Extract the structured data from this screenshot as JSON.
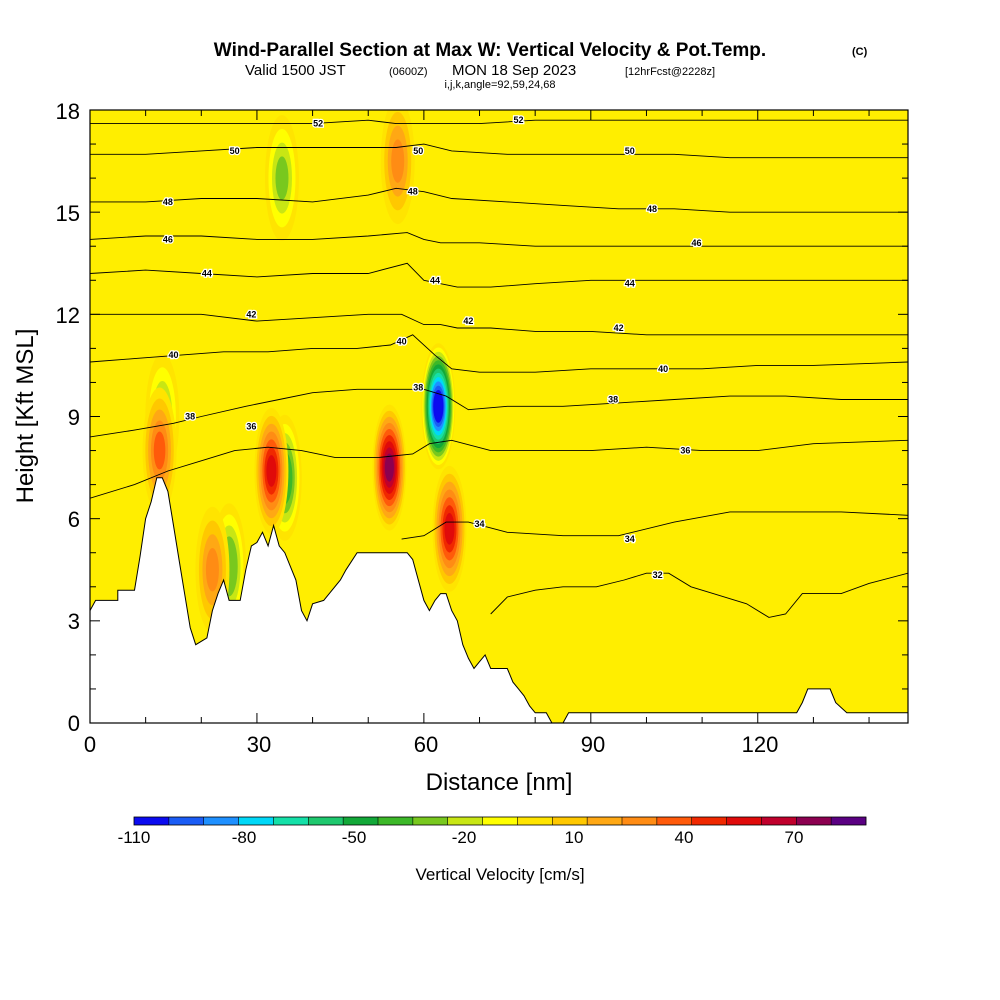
{
  "header": {
    "title": "Wind-Parallel Section at Max W: Vertical Velocity & Pot.Temp.",
    "copyright": "(C)",
    "valid_prefix": "Valid 1500 JST",
    "valid_utc": "(0600Z)",
    "valid_date": "MON 18 Sep 2023",
    "forecast": "[12hrFcst@2228z]",
    "indices": "i,j,k,angle=92,59,24,68"
  },
  "chart_data": {
    "type": "heatmap",
    "xlabel": "Distance [nm]",
    "ylabel": "Height [Kft MSL]",
    "xlim": [
      0,
      147
    ],
    "ylim": [
      0,
      18
    ],
    "x_ticks": [
      "0",
      "30",
      "60",
      "90",
      "120"
    ],
    "y_ticks": [
      "0",
      "3",
      "6",
      "9",
      "12",
      "15",
      "18"
    ],
    "background_value_cm_s": 5,
    "colorbar": {
      "title": "Vertical Velocity [cm/s]",
      "tick_labels": [
        "-110",
        "-80",
        "-50",
        "-20",
        "10",
        "40",
        "70"
      ],
      "levels": [
        -110,
        -100,
        -90,
        -80,
        -70,
        -60,
        -50,
        -40,
        -30,
        -20,
        -10,
        0,
        10,
        20,
        30,
        40,
        50,
        60,
        70,
        80,
        90
      ],
      "colors": [
        "#0b0bf0",
        "#1a5cf5",
        "#1e90ff",
        "#00d8f8",
        "#14e0a8",
        "#1ec86e",
        "#12a838",
        "#3cb828",
        "#78c81e",
        "#c8e614",
        "#ffff00",
        "#ffe400",
        "#ffc800",
        "#ffa814",
        "#ff8c14",
        "#ff5a0a",
        "#f02800",
        "#e00a0a",
        "#c0002c",
        "#8c0050",
        "#5a0082"
      ]
    },
    "terrain_kft": [
      [
        0,
        3.3
      ],
      [
        1,
        3.6
      ],
      [
        5,
        3.6
      ],
      [
        5,
        3.9
      ],
      [
        8,
        3.9
      ],
      [
        9,
        4.9
      ],
      [
        10,
        6.0
      ],
      [
        11,
        6.5
      ],
      [
        12,
        7.2
      ],
      [
        13,
        7.2
      ],
      [
        14,
        6.8
      ],
      [
        15,
        5.8
      ],
      [
        16,
        4.8
      ],
      [
        17,
        3.8
      ],
      [
        18,
        2.8
      ],
      [
        19,
        2.3
      ],
      [
        21,
        2.5
      ],
      [
        22,
        3.3
      ],
      [
        23,
        3.8
      ],
      [
        24,
        4.2
      ],
      [
        25,
        3.6
      ],
      [
        27,
        3.6
      ],
      [
        28,
        4.5
      ],
      [
        29,
        5.2
      ],
      [
        30,
        5.3
      ],
      [
        31,
        5.6
      ],
      [
        32,
        5.2
      ],
      [
        33,
        5.8
      ],
      [
        34,
        5.2
      ],
      [
        35,
        5.0
      ],
      [
        36,
        4.6
      ],
      [
        37,
        4.2
      ],
      [
        38,
        3.3
      ],
      [
        39,
        3.0
      ],
      [
        40,
        3.5
      ],
      [
        42,
        3.6
      ],
      [
        43,
        3.8
      ],
      [
        45,
        4.2
      ],
      [
        46,
        4.5
      ],
      [
        48,
        5.0
      ],
      [
        57,
        5.0
      ],
      [
        58,
        4.8
      ],
      [
        59,
        4.2
      ],
      [
        60,
        3.6
      ],
      [
        61,
        3.3
      ],
      [
        62,
        3.6
      ],
      [
        63,
        3.8
      ],
      [
        64,
        3.8
      ],
      [
        65,
        3.3
      ],
      [
        66,
        3.0
      ],
      [
        67,
        2.3
      ],
      [
        68,
        1.9
      ],
      [
        69,
        1.6
      ],
      [
        70,
        1.8
      ],
      [
        71,
        2.0
      ],
      [
        72,
        1.6
      ],
      [
        75,
        1.6
      ],
      [
        76,
        1.2
      ],
      [
        77,
        1.0
      ],
      [
        78,
        0.8
      ],
      [
        79,
        0.5
      ],
      [
        80,
        0.3
      ],
      [
        82,
        0.3
      ],
      [
        83,
        0.0
      ],
      [
        85,
        0.0
      ],
      [
        86,
        0.3
      ],
      [
        127,
        0.3
      ],
      [
        128,
        0.6
      ],
      [
        129,
        1.0
      ],
      [
        133,
        1.0
      ],
      [
        134,
        0.6
      ],
      [
        136,
        0.3
      ],
      [
        140,
        0.3
      ],
      [
        141,
        0.3
      ],
      [
        147,
        0.3
      ]
    ],
    "updraft_cores": [
      {
        "x": 53.8,
        "y": 7.5,
        "peak_cm_s": 80
      },
      {
        "x": 32.6,
        "y": 7.4,
        "peak_cm_s": 60
      },
      {
        "x": 64.6,
        "y": 5.7,
        "peak_cm_s": 60
      },
      {
        "x": 12.5,
        "y": 8.0,
        "peak_cm_s": 40
      },
      {
        "x": 55.3,
        "y": 16.5,
        "peak_cm_s": 30
      },
      {
        "x": 22.0,
        "y": 4.5,
        "peak_cm_s": 30
      }
    ],
    "downdraft_cores": [
      {
        "x": 62.6,
        "y": 9.3,
        "peak_cm_s": -110
      },
      {
        "x": 35.0,
        "y": 7.2,
        "peak_cm_s": -40
      },
      {
        "x": 25.0,
        "y": 4.6,
        "peak_cm_s": -30
      },
      {
        "x": 13.0,
        "y": 9.0,
        "peak_cm_s": -20
      },
      {
        "x": 34.5,
        "y": 16.0,
        "peak_cm_s": -25
      }
    ],
    "theta_contours": [
      {
        "label": "32",
        "points": [
          [
            72,
            3.2
          ],
          [
            75,
            3.7
          ],
          [
            80,
            3.9
          ],
          [
            85,
            4.0
          ],
          [
            91,
            4.0
          ],
          [
            96,
            4.2
          ],
          [
            100,
            4.4
          ],
          [
            104,
            4.4
          ],
          [
            108,
            4.0
          ],
          [
            112,
            3.8
          ],
          [
            118,
            3.5
          ],
          [
            122,
            3.1
          ],
          [
            125,
            3.2
          ],
          [
            128,
            3.8
          ],
          [
            133,
            3.8
          ],
          [
            135,
            3.8
          ],
          [
            140,
            4.1
          ],
          [
            147,
            4.4
          ]
        ],
        "labels_at": [
          [
            102,
            4.35
          ]
        ]
      },
      {
        "label": "34",
        "points": [
          [
            56,
            5.4
          ],
          [
            60,
            5.5
          ],
          [
            64,
            5.9
          ],
          [
            68,
            5.9
          ],
          [
            75,
            5.6
          ],
          [
            85,
            5.5
          ],
          [
            95,
            5.5
          ],
          [
            105,
            5.9
          ],
          [
            115,
            6.2
          ],
          [
            125,
            6.2
          ],
          [
            135,
            6.2
          ],
          [
            147,
            6.1
          ]
        ],
        "labels_at": [
          [
            70,
            5.85
          ],
          [
            97,
            5.4
          ]
        ]
      },
      {
        "label": "36",
        "points": [
          [
            0,
            6.6
          ],
          [
            8,
            7.0
          ],
          [
            14,
            7.4
          ],
          [
            20,
            7.7
          ],
          [
            26,
            8.0
          ],
          [
            32,
            8.1
          ],
          [
            38,
            8.0
          ],
          [
            44,
            7.8
          ],
          [
            52,
            7.8
          ],
          [
            58,
            7.9
          ],
          [
            61,
            8.2
          ],
          [
            65,
            8.3
          ],
          [
            72,
            8.0
          ],
          [
            80,
            8.0
          ],
          [
            90,
            8.0
          ],
          [
            100,
            8.1
          ],
          [
            110,
            8.0
          ],
          [
            120,
            8.0
          ],
          [
            130,
            8.2
          ],
          [
            147,
            8.3
          ]
        ],
        "labels_at": [
          [
            29,
            8.7
          ],
          [
            107,
            8.0
          ]
        ]
      },
      {
        "label": "38",
        "points": [
          [
            0,
            8.4
          ],
          [
            8,
            8.6
          ],
          [
            15,
            8.8
          ],
          [
            20,
            9.0
          ],
          [
            28,
            9.3
          ],
          [
            34,
            9.5
          ],
          [
            40,
            9.7
          ],
          [
            48,
            9.8
          ],
          [
            55,
            9.8
          ],
          [
            60,
            9.8
          ],
          [
            64,
            9.6
          ],
          [
            68,
            9.2
          ],
          [
            75,
            9.3
          ],
          [
            85,
            9.3
          ],
          [
            95,
            9.4
          ],
          [
            105,
            9.5
          ],
          [
            115,
            9.6
          ],
          [
            125,
            9.6
          ],
          [
            135,
            9.5
          ],
          [
            147,
            9.5
          ]
        ],
        "labels_at": [
          [
            18,
            9.0
          ],
          [
            59,
            9.85
          ],
          [
            94,
            9.5
          ]
        ]
      },
      {
        "label": "40",
        "points": [
          [
            0,
            10.6
          ],
          [
            8,
            10.7
          ],
          [
            16,
            10.8
          ],
          [
            24,
            10.9
          ],
          [
            32,
            10.9
          ],
          [
            40,
            11.0
          ],
          [
            48,
            11.0
          ],
          [
            54,
            11.1
          ],
          [
            58,
            11.4
          ],
          [
            62,
            10.8
          ],
          [
            65,
            10.4
          ],
          [
            70,
            10.3
          ],
          [
            80,
            10.3
          ],
          [
            90,
            10.4
          ],
          [
            100,
            10.4
          ],
          [
            110,
            10.4
          ],
          [
            120,
            10.5
          ],
          [
            130,
            10.5
          ],
          [
            147,
            10.6
          ]
        ],
        "labels_at": [
          [
            15,
            10.8
          ],
          [
            56,
            11.2
          ],
          [
            103,
            10.4
          ]
        ]
      },
      {
        "label": "42",
        "points": [
          [
            0,
            12.0
          ],
          [
            10,
            12.0
          ],
          [
            20,
            12.0
          ],
          [
            30,
            11.8
          ],
          [
            40,
            11.9
          ],
          [
            50,
            12.0
          ],
          [
            56,
            12.0
          ],
          [
            60,
            11.7
          ],
          [
            63,
            11.7
          ],
          [
            66,
            11.6
          ],
          [
            72,
            11.6
          ],
          [
            80,
            11.5
          ],
          [
            90,
            11.5
          ],
          [
            100,
            11.4
          ],
          [
            110,
            11.4
          ],
          [
            120,
            11.4
          ],
          [
            130,
            11.4
          ],
          [
            147,
            11.4
          ]
        ],
        "labels_at": [
          [
            29,
            12.0
          ],
          [
            68,
            11.8
          ],
          [
            95,
            11.6
          ]
        ]
      },
      {
        "label": "44",
        "points": [
          [
            0,
            13.2
          ],
          [
            10,
            13.3
          ],
          [
            20,
            13.2
          ],
          [
            30,
            13.1
          ],
          [
            40,
            13.2
          ],
          [
            50,
            13.2
          ],
          [
            57,
            13.5
          ],
          [
            60,
            13.0
          ],
          [
            63,
            12.9
          ],
          [
            66,
            12.8
          ],
          [
            72,
            12.8
          ],
          [
            80,
            12.9
          ],
          [
            90,
            13.0
          ],
          [
            100,
            13.0
          ],
          [
            110,
            13.0
          ],
          [
            120,
            13.0
          ],
          [
            130,
            13.0
          ],
          [
            147,
            13.0
          ]
        ],
        "labels_at": [
          [
            21,
            13.2
          ],
          [
            62,
            13.0
          ],
          [
            97,
            12.9
          ]
        ]
      },
      {
        "label": "46",
        "points": [
          [
            0,
            14.2
          ],
          [
            10,
            14.3
          ],
          [
            20,
            14.3
          ],
          [
            30,
            14.2
          ],
          [
            40,
            14.2
          ],
          [
            50,
            14.3
          ],
          [
            57,
            14.4
          ],
          [
            60,
            14.2
          ],
          [
            63,
            14.1
          ],
          [
            70,
            14.1
          ],
          [
            80,
            14.0
          ],
          [
            90,
            14.0
          ],
          [
            100,
            14.0
          ],
          [
            110,
            14.0
          ],
          [
            120,
            14.0
          ],
          [
            130,
            14.0
          ],
          [
            147,
            14.0
          ]
        ],
        "labels_at": [
          [
            14,
            14.2
          ],
          [
            109,
            14.1
          ]
        ]
      },
      {
        "label": "48",
        "points": [
          [
            0,
            15.3
          ],
          [
            10,
            15.3
          ],
          [
            20,
            15.4
          ],
          [
            30,
            15.4
          ],
          [
            40,
            15.3
          ],
          [
            50,
            15.5
          ],
          [
            55,
            15.7
          ],
          [
            60,
            15.6
          ],
          [
            65,
            15.4
          ],
          [
            75,
            15.3
          ],
          [
            85,
            15.2
          ],
          [
            95,
            15.1
          ],
          [
            105,
            15.1
          ],
          [
            115,
            15.0
          ],
          [
            125,
            15.0
          ],
          [
            135,
            15.0
          ],
          [
            147,
            15.0
          ]
        ],
        "labels_at": [
          [
            14,
            15.3
          ],
          [
            58,
            15.6
          ],
          [
            101,
            15.1
          ]
        ]
      },
      {
        "label": "50",
        "points": [
          [
            0,
            16.7
          ],
          [
            10,
            16.7
          ],
          [
            20,
            16.8
          ],
          [
            30,
            16.9
          ],
          [
            40,
            16.9
          ],
          [
            50,
            16.9
          ],
          [
            55,
            16.9
          ],
          [
            60,
            17.0
          ],
          [
            65,
            16.8
          ],
          [
            75,
            16.7
          ],
          [
            85,
            16.7
          ],
          [
            95,
            16.7
          ],
          [
            105,
            16.7
          ],
          [
            115,
            16.6
          ],
          [
            125,
            16.6
          ],
          [
            135,
            16.6
          ],
          [
            147,
            16.6
          ]
        ],
        "labels_at": [
          [
            26,
            16.8
          ],
          [
            59,
            16.8
          ],
          [
            97,
            16.8
          ]
        ]
      },
      {
        "label": "52",
        "points": [
          [
            0,
            17.6
          ],
          [
            10,
            17.6
          ],
          [
            20,
            17.6
          ],
          [
            30,
            17.6
          ],
          [
            40,
            17.6
          ],
          [
            50,
            17.7
          ],
          [
            55,
            17.6
          ],
          [
            62,
            17.6
          ],
          [
            70,
            17.6
          ],
          [
            80,
            17.7
          ],
          [
            90,
            17.7
          ],
          [
            100,
            17.7
          ],
          [
            110,
            17.7
          ],
          [
            120,
            17.7
          ],
          [
            130,
            17.7
          ],
          [
            147,
            17.7
          ]
        ],
        "labels_at": [
          [
            41,
            17.6
          ],
          [
            77,
            17.7
          ]
        ]
      }
    ]
  }
}
